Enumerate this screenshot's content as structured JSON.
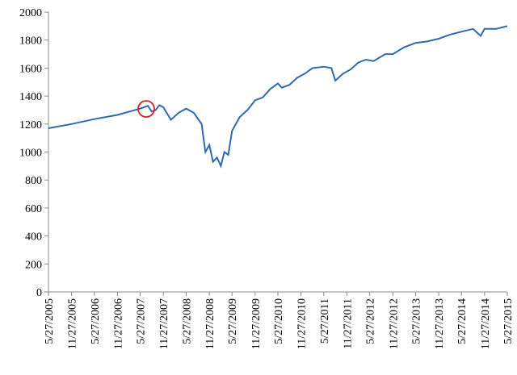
{
  "chart_data": {
    "type": "line",
    "x": [
      "5/27/2005",
      "11/27/2005",
      "5/27/2006",
      "11/27/2006",
      "5/27/2007",
      "7/27/2007",
      "8/27/2007",
      "9/27/2007",
      "10/27/2007",
      "11/27/2007",
      "1/27/2008",
      "3/27/2008",
      "5/27/2008",
      "7/27/2008",
      "9/27/2008",
      "10/27/2008",
      "11/27/2008",
      "12/27/2008",
      "1/27/2009",
      "2/27/2009",
      "3/27/2009",
      "4/27/2009",
      "5/27/2009",
      "7/27/2009",
      "9/27/2009",
      "11/27/2009",
      "1/27/2010",
      "3/27/2010",
      "5/27/2010",
      "6/27/2010",
      "8/27/2010",
      "10/27/2010",
      "12/27/2010",
      "2/27/2011",
      "5/27/2011",
      "7/27/2011",
      "8/27/2011",
      "10/27/2011",
      "12/27/2011",
      "2/27/2012",
      "4/27/2012",
      "6/27/2012",
      "9/27/2012",
      "11/27/2012",
      "2/27/2013",
      "5/27/2013",
      "8/27/2013",
      "11/27/2013",
      "2/27/2014",
      "5/27/2014",
      "8/27/2014",
      "10/27/2014",
      "11/27/2014",
      "2/27/2015",
      "5/27/2015"
    ],
    "series": [
      {
        "color": "#2e6aad",
        "values": [
          1170,
          1200,
          1235,
          1265,
          1310,
          1330,
          1290,
          1300,
          1335,
          1320,
          1230,
          1280,
          1310,
          1280,
          1200,
          1000,
          1050,
          930,
          960,
          900,
          1000,
          980,
          1150,
          1250,
          1300,
          1370,
          1390,
          1450,
          1490,
          1460,
          1480,
          1530,
          1560,
          1600,
          1610,
          1600,
          1510,
          1560,
          1590,
          1640,
          1660,
          1650,
          1700,
          1700,
          1750,
          1780,
          1790,
          1810,
          1840,
          1860,
          1880,
          1830,
          1880,
          1880,
          1900
        ]
      }
    ],
    "xlim": [
      "5/27/2005",
      "5/27/2015"
    ],
    "xticks": [
      "5/27/2005",
      "11/27/2005",
      "5/27/2006",
      "11/27/2006",
      "5/27/2007",
      "11/27/2007",
      "5/27/2008",
      "11/27/2008",
      "5/27/2009",
      "11/27/2009",
      "5/27/2010",
      "11/27/2010",
      "5/27/2011",
      "11/27/2011",
      "5/27/2012",
      "11/27/2012",
      "5/27/2013",
      "11/27/2013",
      "5/27/2014",
      "11/27/2014",
      "5/27/2015"
    ],
    "ylim": [
      0,
      2000
    ],
    "yticks": [
      0,
      200,
      400,
      600,
      800,
      1000,
      1200,
      1400,
      1600,
      1800,
      2000
    ]
  }
}
